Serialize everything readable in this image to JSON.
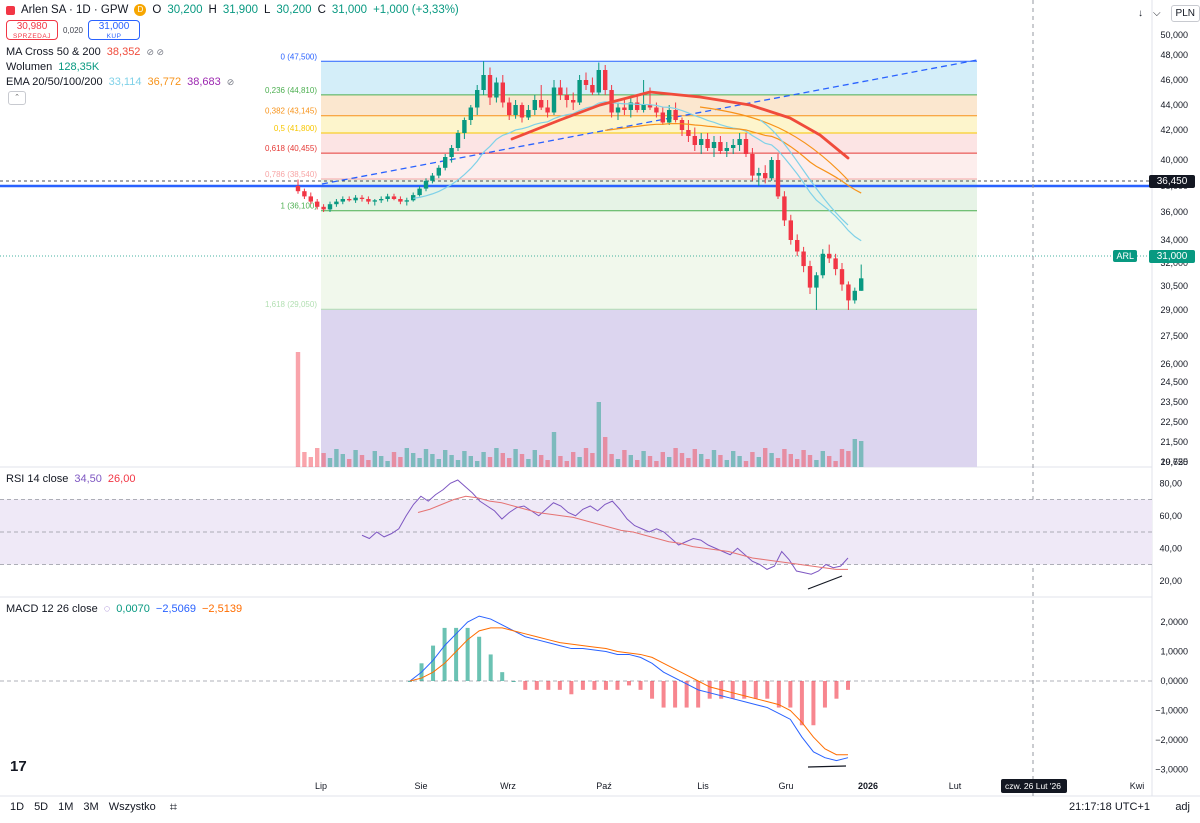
{
  "header": {
    "title": "Arlen SA · 1D · GPW",
    "badge": "D",
    "o_label": "O",
    "o": "30,200",
    "h_label": "H",
    "h": "31,900",
    "l_label": "L",
    "l": "30,200",
    "c_label": "C",
    "c": "31,000",
    "change": "+1,000 (+3,33%)"
  },
  "trade": {
    "sell_price": "30,980",
    "sell_label": "SPRZEDAJ",
    "spread": "0,020",
    "buy_price": "31,000",
    "buy_label": "KUP"
  },
  "indicators": {
    "ma_cross": {
      "label": "MA Cross 50 & 200",
      "value": "38,352"
    },
    "volume": {
      "label": "Wolumen",
      "value": "128,35K"
    },
    "ema": {
      "label": "EMA 20/50/100/200",
      "v20": "33,114",
      "v50": "36,772",
      "v100": "38,683"
    },
    "rsi": {
      "label": "RSI 14 close",
      "v1": "34,50",
      "v2": "26,00"
    },
    "macd": {
      "label": "MACD 12 26 close",
      "v1": "0,0070",
      "v2": "−2,5069",
      "v3": "−2,5139"
    }
  },
  "topright": {
    "currency": "PLN"
  },
  "price_labels": {
    "level": "36,450",
    "current": "31,000",
    "ticker": "ARL"
  },
  "bottombar": {
    "timeframes": [
      "1D",
      "5D",
      "1M",
      "3M",
      "Wszystko"
    ],
    "clock": "21:17:18 UTC+1",
    "adj": "adj"
  },
  "colors": {
    "up": "#089981",
    "down": "#f23645",
    "ema20": "#7fd1e8",
    "ema50": "#f7931a",
    "ma_thick": "#f04b3b",
    "blue": "#2962ff",
    "rsi": "#7e57c2",
    "macd": "#2962ff",
    "signal": "#ff6d00"
  },
  "chart_data": {
    "type": "candlestick",
    "price_axis": {
      "ticks": [
        "50,000",
        "48,000",
        "46,000",
        "44,000",
        "42,000",
        "40,000",
        "38,000",
        "36,000",
        "34,000",
        "32,000",
        "30,500",
        "29,000",
        "27,500",
        "26,000",
        "24,500",
        "23,500",
        "22,500",
        "21,500",
        "20,625",
        "19,750"
      ]
    },
    "time_axis": {
      "labels": [
        "Lip",
        "Sie",
        "Wrz",
        "Paź",
        "Lis",
        "Gru",
        "2026",
        "Lut",
        "czw. 26 Lut '26",
        "Kwi"
      ]
    },
    "fibonacci": [
      {
        "ratio": "0",
        "price": "47,500",
        "label": "0 (47,500)"
      },
      {
        "ratio": "0.236",
        "price": "44,810",
        "label": "0,236 (44,810)"
      },
      {
        "ratio": "0.382",
        "price": "43,145",
        "label": "0,382 (43,145)"
      },
      {
        "ratio": "0.5",
        "price": "41,800",
        "label": "0,5 (41,800)"
      },
      {
        "ratio": "0.618",
        "price": "40,455",
        "label": "0,618 (40,455)"
      },
      {
        "ratio": "0.786",
        "price": "38,540",
        "label": "0,786 (38,540)"
      },
      {
        "ratio": "1",
        "price": "36,100",
        "label": "1 (36,100)"
      },
      {
        "ratio": "1.618",
        "price": "29,050",
        "label": "1,618 (29,050)"
      }
    ],
    "rsi_axis": [
      "80,00",
      "60,00",
      "40,00",
      "20,00"
    ],
    "macd_axis": [
      "2,0000",
      "1,0000",
      "0,0000",
      "−1,0000",
      "−2,0000",
      "−3,0000"
    ],
    "candles_ohlc": [
      [
        38.0,
        38.5,
        37.4,
        37.6
      ],
      [
        37.6,
        37.8,
        37.0,
        37.2
      ],
      [
        37.2,
        37.5,
        36.6,
        36.8
      ],
      [
        36.8,
        37.0,
        36.2,
        36.4
      ],
      [
        36.4,
        36.6,
        36.0,
        36.2
      ],
      [
        36.2,
        36.8,
        36.0,
        36.6
      ],
      [
        36.6,
        37.0,
        36.4,
        36.8
      ],
      [
        36.8,
        37.2,
        36.6,
        37.0
      ],
      [
        37.0,
        37.2,
        36.8,
        36.9
      ],
      [
        36.9,
        37.3,
        36.7,
        37.1
      ],
      [
        37.1,
        37.3,
        36.8,
        37.0
      ],
      [
        37.0,
        37.2,
        36.6,
        36.8
      ],
      [
        36.8,
        37.0,
        36.5,
        36.9
      ],
      [
        36.9,
        37.2,
        36.7,
        37.0
      ],
      [
        37.0,
        37.4,
        36.8,
        37.2
      ],
      [
        37.2,
        37.4,
        36.9,
        37.0
      ],
      [
        37.0,
        37.2,
        36.6,
        36.8
      ],
      [
        36.8,
        37.1,
        36.5,
        36.9
      ],
      [
        36.9,
        37.5,
        36.8,
        37.3
      ],
      [
        37.3,
        38.0,
        37.2,
        37.8
      ],
      [
        37.8,
        38.6,
        37.6,
        38.4
      ],
      [
        38.4,
        39.0,
        38.2,
        38.8
      ],
      [
        38.8,
        39.6,
        38.6,
        39.4
      ],
      [
        39.4,
        40.4,
        39.2,
        40.2
      ],
      [
        40.2,
        41.0,
        39.8,
        40.8
      ],
      [
        40.8,
        42.0,
        40.6,
        41.8
      ],
      [
        41.8,
        43.0,
        41.4,
        42.8
      ],
      [
        42.8,
        44.0,
        42.4,
        43.8
      ],
      [
        43.8,
        45.6,
        43.2,
        45.2
      ],
      [
        45.2,
        47.5,
        44.8,
        46.4
      ],
      [
        46.4,
        47.0,
        44.0,
        44.6
      ],
      [
        44.6,
        46.2,
        44.2,
        45.8
      ],
      [
        45.8,
        46.4,
        43.8,
        44.2
      ],
      [
        44.2,
        44.6,
        42.8,
        43.2
      ],
      [
        43.2,
        44.4,
        42.9,
        44.0
      ],
      [
        44.0,
        44.2,
        42.6,
        43.0
      ],
      [
        43.0,
        44.0,
        42.8,
        43.6
      ],
      [
        43.6,
        44.8,
        43.2,
        44.4
      ],
      [
        44.4,
        45.6,
        43.6,
        43.8
      ],
      [
        43.8,
        44.4,
        43.0,
        43.4
      ],
      [
        43.4,
        46.0,
        43.2,
        45.4
      ],
      [
        45.4,
        46.0,
        44.4,
        44.8
      ],
      [
        44.8,
        45.4,
        43.8,
        44.4
      ],
      [
        44.4,
        45.0,
        43.6,
        44.2
      ],
      [
        44.2,
        46.4,
        44.0,
        46.0
      ],
      [
        46.0,
        46.6,
        45.2,
        45.6
      ],
      [
        45.6,
        46.2,
        44.8,
        45.0
      ],
      [
        45.0,
        47.4,
        44.8,
        46.8
      ],
      [
        46.8,
        47.2,
        44.8,
        45.2
      ],
      [
        45.2,
        45.6,
        43.0,
        43.4
      ],
      [
        43.4,
        44.2,
        42.8,
        43.8
      ],
      [
        43.8,
        44.4,
        43.2,
        43.6
      ],
      [
        43.6,
        44.6,
        43.0,
        44.2
      ],
      [
        44.2,
        44.8,
        43.4,
        43.6
      ],
      [
        43.6,
        46.0,
        43.4,
        44.0
      ],
      [
        44.0,
        45.4,
        43.6,
        43.8
      ],
      [
        43.8,
        44.2,
        43.0,
        43.4
      ],
      [
        43.4,
        43.8,
        42.4,
        42.6
      ],
      [
        42.6,
        44.0,
        42.4,
        43.6
      ],
      [
        43.6,
        44.2,
        42.6,
        42.8
      ],
      [
        42.8,
        43.0,
        41.6,
        42.0
      ],
      [
        42.0,
        42.8,
        41.2,
        41.6
      ],
      [
        41.6,
        42.2,
        40.6,
        41.0
      ],
      [
        41.0,
        41.8,
        40.4,
        41.4
      ],
      [
        41.4,
        41.8,
        40.6,
        40.8
      ],
      [
        40.8,
        41.6,
        40.2,
        41.2
      ],
      [
        41.2,
        41.6,
        40.4,
        40.6
      ],
      [
        40.6,
        41.2,
        40.2,
        40.8
      ],
      [
        40.8,
        41.4,
        40.4,
        41.0
      ],
      [
        41.0,
        41.8,
        40.6,
        41.4
      ],
      [
        41.4,
        41.8,
        40.2,
        40.4
      ],
      [
        40.4,
        40.8,
        38.4,
        38.8
      ],
      [
        38.8,
        39.4,
        38.0,
        39.0
      ],
      [
        39.0,
        39.6,
        38.2,
        38.6
      ],
      [
        38.6,
        40.2,
        38.4,
        40.0
      ],
      [
        40.0,
        40.4,
        37.0,
        37.2
      ],
      [
        37.2,
        37.6,
        35.0,
        35.4
      ],
      [
        35.4,
        35.8,
        33.6,
        34.0
      ],
      [
        34.0,
        34.4,
        32.6,
        33.0
      ],
      [
        33.0,
        33.4,
        31.4,
        31.8
      ],
      [
        31.8,
        32.2,
        30.0,
        30.4
      ],
      [
        30.4,
        31.4,
        29.0,
        31.2
      ],
      [
        31.2,
        33.2,
        31.0,
        32.8
      ],
      [
        32.8,
        33.6,
        32.0,
        32.4
      ],
      [
        32.4,
        32.8,
        31.2,
        31.6
      ],
      [
        31.6,
        32.0,
        30.2,
        30.6
      ],
      [
        30.6,
        30.8,
        29.0,
        29.6
      ],
      [
        29.6,
        30.4,
        29.4,
        30.2
      ],
      [
        30.2,
        31.9,
        30.2,
        31.0
      ]
    ]
  }
}
